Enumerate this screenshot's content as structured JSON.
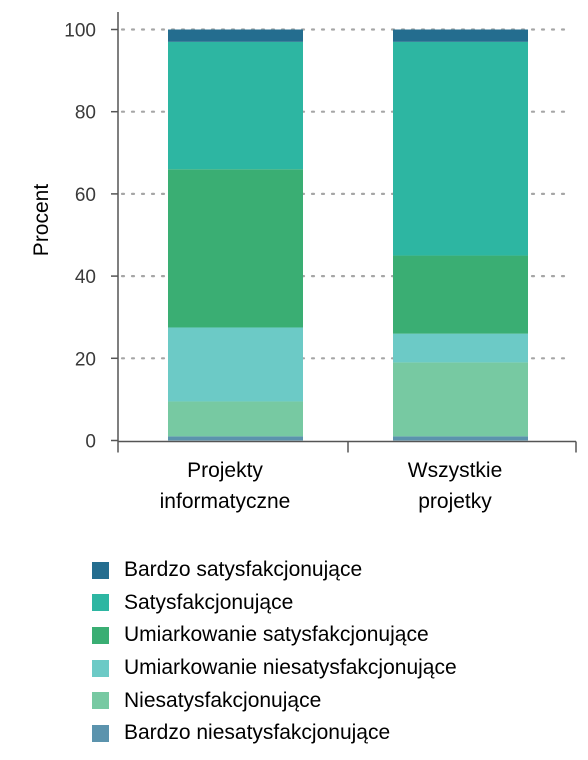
{
  "chart_data": {
    "type": "bar",
    "stacked": true,
    "categories": [
      "Projekty informatyczne",
      "Wszystkie projetky"
    ],
    "category_lines": [
      [
        "Projekty",
        "informatyczne"
      ],
      [
        "Wszystkie",
        "projetky"
      ]
    ],
    "ylabel": "Procent",
    "ylim": [
      0,
      100
    ],
    "yticks": [
      "0",
      "20",
      "40",
      "60",
      "80",
      "100"
    ],
    "grid": "dotted horizontal",
    "legend_position": "bottom",
    "series": [
      {
        "name": "Bardzo niesatysfakcjonujące",
        "values": [
          1,
          1
        ],
        "color": "#5b93ad"
      },
      {
        "name": "Niesatysfakcjonujące",
        "values": [
          8.5,
          18
        ],
        "color": "#77c9a2"
      },
      {
        "name": "Umiarkowanie niesatysfakcjonujące",
        "values": [
          18,
          7
        ],
        "color": "#6ccac6"
      },
      {
        "name": "Umiarkowanie satysfakcjonujące",
        "values": [
          38.5,
          19
        ],
        "color": "#3aae73"
      },
      {
        "name": "Satysfakcjonujące",
        "values": [
          31,
          52
        ],
        "color": "#2db6a2"
      },
      {
        "name": "Bardzo satysfakcjonujące",
        "values": [
          3,
          3
        ],
        "color": "#246d8f"
      }
    ],
    "legend_order": [
      "Bardzo satysfakcjonujące",
      "Satysfakcjonujące",
      "Umiarkowanie satysfakcjonujące",
      "Umiarkowanie niesatysfakcjonujące",
      "Niesatysfakcjonujące",
      "Bardzo niesatysfakcjonujące"
    ]
  }
}
